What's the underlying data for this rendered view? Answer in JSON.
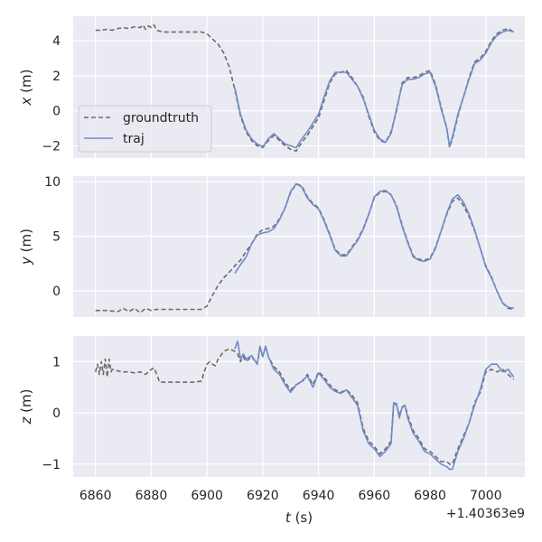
{
  "chart_data": {
    "type": "line",
    "x_axis": {
      "label": "t (s)",
      "label_symbol": "t",
      "label_unit": " (s)",
      "offset_text": "+1.40363e9",
      "ticks": [
        "6860",
        "6880",
        "6900",
        "6920",
        "6940",
        "6960",
        "6980",
        "7000"
      ],
      "xlim": [
        6852,
        7014
      ]
    },
    "legend": {
      "placement": "lower-left of top panel",
      "entries": [
        {
          "name": "groundtruth",
          "style": "dashed",
          "color": "#6b6b6b"
        },
        {
          "name": "traj",
          "style": "solid",
          "color": "#6d8cc6"
        }
      ]
    },
    "grid": true,
    "background_color": "#eaeaf2",
    "panels": [
      {
        "id": "x",
        "ylabel": "x (m)",
        "ylabel_symbol": "x",
        "ylabel_unit": " (m)",
        "ylim": [
          -2.7,
          5.4
        ],
        "yticks": [
          "4",
          "2",
          "0",
          "−2"
        ],
        "ytick_values": [
          4,
          2,
          0,
          -2
        ],
        "series": [
          {
            "name": "groundtruth",
            "x": [
              6860,
              6862,
              6864,
              6866,
              6868,
              6870,
              6872,
              6874,
              6876,
              6877,
              6878,
              6879,
              6880,
              6881,
              6882,
              6884,
              6890,
              6895,
              6898,
              6900,
              6902,
              6904,
              6906,
              6908,
              6910,
              6912,
              6914,
              6916,
              6918,
              6920,
              6922,
              6924,
              6926,
              6928,
              6930,
              6932,
              6934,
              6936,
              6938,
              6940,
              6942,
              6944,
              6946,
              6948,
              6950,
              6952,
              6954,
              6956,
              6958,
              6960,
              6962,
              6964,
              6966,
              6968,
              6970,
              6972,
              6974,
              6976,
              6978,
              6980,
              6981,
              6982,
              6984,
              6986,
              6987,
              6988,
              6990,
              6992,
              6994,
              6996,
              6998,
              7000,
              7002,
              7004,
              7006,
              7008,
              7010
            ],
            "y": [
              4.6,
              4.6,
              4.65,
              4.6,
              4.7,
              4.75,
              4.7,
              4.8,
              4.75,
              4.9,
              4.65,
              4.85,
              4.75,
              4.9,
              4.6,
              4.5,
              4.5,
              4.5,
              4.5,
              4.4,
              4.1,
              3.8,
              3.3,
              2.5,
              1.2,
              -0.3,
              -1.2,
              -1.7,
              -2.0,
              -2.1,
              -1.7,
              -1.4,
              -1.7,
              -2.0,
              -2.2,
              -2.3,
              -1.8,
              -1.4,
              -0.9,
              -0.4,
              0.6,
              1.6,
              2.1,
              2.2,
              2.3,
              1.9,
              1.4,
              0.8,
              -0.3,
              -1.2,
              -1.7,
              -1.8,
              -1.2,
              0.0,
              1.6,
              1.9,
              1.9,
              2.0,
              2.2,
              2.3,
              1.9,
              1.5,
              0.2,
              -1.0,
              -2.1,
              -1.6,
              -0.3,
              0.8,
              1.9,
              2.8,
              3.0,
              3.4,
              4.0,
              4.4,
              4.6,
              4.7,
              4.5
            ]
          },
          {
            "name": "traj",
            "x": [
              6910,
              6912,
              6914,
              6916,
              6918,
              6920,
              6922,
              6924,
              6926,
              6928,
              6930,
              6932,
              6934,
              6936,
              6938,
              6940,
              6942,
              6944,
              6946,
              6948,
              6950,
              6952,
              6954,
              6956,
              6958,
              6960,
              6962,
              6964,
              6966,
              6968,
              6970,
              6972,
              6974,
              6976,
              6978,
              6980,
              6981,
              6982,
              6984,
              6986,
              6987,
              6988,
              6990,
              6992,
              6994,
              6996,
              6998,
              7000,
              7002,
              7004,
              7006,
              7008,
              7010
            ],
            "y": [
              1.3,
              -0.2,
              -1.1,
              -1.6,
              -1.9,
              -2.05,
              -1.6,
              -1.3,
              -1.6,
              -1.9,
              -2.0,
              -2.1,
              -1.6,
              -1.2,
              -0.7,
              -0.2,
              0.8,
              1.7,
              2.2,
              2.2,
              2.2,
              1.8,
              1.4,
              0.7,
              -0.2,
              -1.1,
              -1.6,
              -1.8,
              -1.3,
              0.1,
              1.5,
              1.8,
              1.8,
              1.9,
              2.1,
              2.2,
              1.8,
              1.4,
              0.1,
              -1.0,
              -2.0,
              -1.5,
              -0.2,
              0.8,
              1.8,
              2.7,
              2.9,
              3.3,
              3.9,
              4.3,
              4.5,
              4.6,
              4.5
            ]
          }
        ]
      },
      {
        "id": "y",
        "ylabel": "y (m)",
        "ylabel_symbol": "y",
        "ylabel_unit": " (m)",
        "ylim": [
          -2.4,
          10.5
        ],
        "yticks": [
          "10",
          "5",
          "0"
        ],
        "ytick_values": [
          10,
          5,
          0
        ],
        "series": [
          {
            "name": "groundtruth",
            "x": [
              6860,
              6864,
              6868,
              6870,
              6872,
              6874,
              6876,
              6878,
              6880,
              6882,
              6884,
              6890,
              6895,
              6898,
              6900,
              6902,
              6904,
              6906,
              6908,
              6910,
              6912,
              6914,
              6916,
              6918,
              6920,
              6922,
              6924,
              6926,
              6928,
              6930,
              6932,
              6934,
              6936,
              6938,
              6940,
              6942,
              6944,
              6946,
              6948,
              6950,
              6952,
              6954,
              6956,
              6958,
              6960,
              6962,
              6964,
              6966,
              6968,
              6970,
              6972,
              6974,
              6976,
              6978,
              6980,
              6982,
              6984,
              6986,
              6988,
              6990,
              6992,
              6994,
              6996,
              6998,
              7000,
              7002,
              7004,
              7006,
              7008,
              7010
            ],
            "y": [
              -1.8,
              -1.8,
              -1.9,
              -1.6,
              -1.9,
              -1.6,
              -2.0,
              -1.6,
              -1.8,
              -1.7,
              -1.7,
              -1.7,
              -1.7,
              -1.7,
              -1.4,
              -0.4,
              0.5,
              1.2,
              1.7,
              2.3,
              2.8,
              3.6,
              4.3,
              5.2,
              5.6,
              5.7,
              5.9,
              6.6,
              7.6,
              9.0,
              9.8,
              9.6,
              8.6,
              8.0,
              7.6,
              6.5,
              5.2,
              3.8,
              3.3,
              3.3,
              4.0,
              4.7,
              5.7,
              7.0,
              8.5,
              9.0,
              9.1,
              8.8,
              7.8,
              6.0,
              4.5,
              3.2,
              2.9,
              2.8,
              3.0,
              4.0,
              5.5,
              7.0,
              8.2,
              8.5,
              7.8,
              6.8,
              5.5,
              3.9,
              2.3,
              1.3,
              0.0,
              -1.1,
              -1.6,
              -1.7
            ]
          },
          {
            "name": "traj",
            "x": [
              6910,
              6912,
              6914,
              6916,
              6918,
              6920,
              6922,
              6924,
              6926,
              6928,
              6930,
              6932,
              6934,
              6936,
              6938,
              6940,
              6942,
              6944,
              6946,
              6948,
              6950,
              6952,
              6954,
              6956,
              6958,
              6960,
              6962,
              6964,
              6966,
              6968,
              6970,
              6972,
              6974,
              6976,
              6978,
              6980,
              6982,
              6984,
              6986,
              6988,
              6990,
              6992,
              6994,
              6996,
              6998,
              7000,
              7002,
              7004,
              7006,
              7008,
              7010
            ],
            "y": [
              1.6,
              2.4,
              3.1,
              4.3,
              5.1,
              5.3,
              5.4,
              5.7,
              6.5,
              7.6,
              9.1,
              9.8,
              9.5,
              8.5,
              7.9,
              7.5,
              6.4,
              5.1,
              3.7,
              3.2,
              3.2,
              3.9,
              4.6,
              5.6,
              7.0,
              8.6,
              9.1,
              9.2,
              8.8,
              7.7,
              5.9,
              4.4,
              3.1,
              2.8,
              2.7,
              2.9,
              3.9,
              5.5,
              7.1,
              8.4,
              8.8,
              8.1,
              7.0,
              5.6,
              3.9,
              2.2,
              1.2,
              0.0,
              -1.1,
              -1.5,
              -1.6
            ]
          }
        ]
      },
      {
        "id": "z",
        "ylabel": "z (m)",
        "ylabel_symbol": "z",
        "ylabel_unit": " (m)",
        "ylim": [
          -1.25,
          1.5
        ],
        "yticks": [
          "1",
          "0",
          "−1"
        ],
        "ytick_values": [
          1,
          0,
          -1
        ],
        "series": [
          {
            "name": "groundtruth",
            "x": [
              6860,
              6860.7,
              6861.4,
              6862.1,
              6862.8,
              6863.5,
              6864.2,
              6864.9,
              6865.6,
              6866,
              6868,
              6870,
              6872,
              6874,
              6876,
              6878,
              6880,
              6881,
              6882,
              6883,
              6884,
              6886,
              6890,
              6895,
              6898,
              6899,
              6900,
              6901,
              6902,
              6903,
              6904,
              6906,
              6908,
              6910,
              6911,
              6912,
              6913,
              6914,
              6916,
              6918,
              6919,
              6920,
              6921,
              6922,
              6924,
              6926,
              6928,
              6930,
              6932,
              6934,
              6936,
              6938,
              6940,
              6942,
              6944,
              6946,
              6948,
              6950,
              6952,
              6954,
              6956,
              6958,
              6960,
              6962,
              6964,
              6966,
              6967,
              6968,
              6969,
              6970,
              6971,
              6972,
              6974,
              6976,
              6978,
              6980,
              6982,
              6984,
              6986,
              6987,
              6988,
              6990,
              6992,
              6994,
              6996,
              6998,
              7000,
              7002,
              7004,
              7006,
              7008,
              7010
            ],
            "y": [
              0.8,
              0.95,
              0.75,
              1.0,
              0.75,
              1.05,
              0.7,
              1.05,
              0.8,
              0.85,
              0.82,
              0.8,
              0.8,
              0.78,
              0.8,
              0.75,
              0.85,
              0.88,
              0.75,
              0.6,
              0.6,
              0.6,
              0.6,
              0.6,
              0.62,
              0.8,
              0.95,
              1.0,
              0.95,
              0.92,
              1.05,
              1.2,
              1.25,
              1.2,
              1.15,
              1.0,
              1.1,
              1.0,
              1.1,
              0.95,
              1.25,
              1.1,
              1.3,
              1.1,
              0.9,
              0.8,
              0.6,
              0.45,
              0.55,
              0.6,
              0.75,
              0.55,
              0.8,
              0.7,
              0.55,
              0.45,
              0.4,
              0.45,
              0.35,
              0.2,
              -0.3,
              -0.55,
              -0.65,
              -0.8,
              -0.7,
              -0.55,
              0.2,
              0.15,
              -0.05,
              0.1,
              0.15,
              -0.05,
              -0.35,
              -0.5,
              -0.7,
              -0.75,
              -0.85,
              -0.95,
              -0.95,
              -1.0,
              -1.0,
              -0.7,
              -0.45,
              -0.2,
              0.2,
              0.4,
              0.8,
              0.85,
              0.8,
              0.85,
              0.75,
              0.65
            ]
          },
          {
            "name": "traj",
            "x": [
              6910,
              6911,
              6912,
              6913,
              6914,
              6916,
              6918,
              6919,
              6920,
              6921,
              6922,
              6924,
              6926,
              6928,
              6930,
              6932,
              6934,
              6936,
              6938,
              6940,
              6942,
              6944,
              6946,
              6948,
              6950,
              6952,
              6954,
              6956,
              6958,
              6960,
              6962,
              6964,
              6966,
              6967,
              6968,
              6969,
              6970,
              6971,
              6972,
              6974,
              6976,
              6978,
              6980,
              6982,
              6984,
              6986,
              6987,
              6988,
              6990,
              6992,
              6994,
              6996,
              6998,
              7000,
              7002,
              7004,
              7006,
              7008,
              7010
            ],
            "y": [
              1.25,
              1.4,
              1.05,
              1.15,
              1.05,
              1.12,
              0.95,
              1.3,
              1.1,
              1.3,
              1.1,
              0.85,
              0.75,
              0.55,
              0.4,
              0.55,
              0.62,
              0.72,
              0.5,
              0.78,
              0.65,
              0.5,
              0.42,
              0.38,
              0.45,
              0.3,
              0.15,
              -0.35,
              -0.6,
              -0.7,
              -0.85,
              -0.75,
              -0.6,
              0.2,
              0.18,
              -0.1,
              0.12,
              0.15,
              -0.1,
              -0.4,
              -0.55,
              -0.75,
              -0.8,
              -0.9,
              -1.0,
              -1.05,
              -1.1,
              -1.1,
              -0.75,
              -0.5,
              -0.2,
              0.15,
              0.45,
              0.85,
              0.95,
              0.95,
              0.8,
              0.85,
              0.7
            ]
          }
        ]
      }
    ]
  }
}
